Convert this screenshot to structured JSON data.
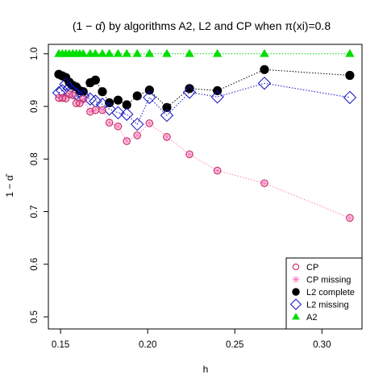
{
  "chart_data": {
    "type": "scatter",
    "title_prefix": "(1 − ",
    "title_symbol": "α̂",
    "title_suffix": ") by algorithms A2, L2 and CP when π(xi)=0.8",
    "xlabel": "h",
    "ylabel_prefix": "1 − ",
    "ylabel_symbol": "α̂",
    "xlim": [
      0.143,
      0.323
    ],
    "ylim": [
      0.477,
      1.018
    ],
    "x_ticks": [
      0.15,
      0.2,
      0.25,
      0.3
    ],
    "x_tick_labels": [
      "0.15",
      "0.20",
      "0.25",
      "0.30"
    ],
    "y_ticks": [
      0.5,
      0.6,
      0.7,
      0.8,
      0.9,
      1.0
    ],
    "y_tick_labels": [
      "0.5",
      "0.6",
      "0.7",
      "0.8",
      "0.9",
      "1.0"
    ],
    "legend_position": "bottom-right",
    "x": [
      0.149,
      0.151,
      0.153,
      0.155,
      0.157,
      0.159,
      0.161,
      0.163,
      0.167,
      0.17,
      0.174,
      0.178,
      0.183,
      0.188,
      0.194,
      0.201,
      0.211,
      0.224,
      0.24,
      0.267,
      0.316
    ],
    "series": [
      {
        "name": "CP",
        "marker": "circle-open",
        "color": "#c8396b",
        "line": "none",
        "values": [
          0.916,
          0.916,
          0.915,
          0.923,
          0.921,
          0.906,
          0.906,
          0.914,
          0.89,
          0.893,
          0.893,
          0.869,
          0.862,
          0.834,
          0.845,
          0.868,
          0.842,
          0.809,
          0.778,
          0.754,
          0.688
        ]
      },
      {
        "name": "CP missing",
        "marker": "asterisk",
        "color": "#ff80c0",
        "line": "dotted",
        "values": [
          0.916,
          0.916,
          0.915,
          0.923,
          0.921,
          0.906,
          0.906,
          0.914,
          0.89,
          0.893,
          0.893,
          0.869,
          0.862,
          0.834,
          0.845,
          0.868,
          0.842,
          0.809,
          0.778,
          0.754,
          0.688
        ]
      },
      {
        "name": "L2 complete",
        "marker": "filled-circle",
        "color": "#000000",
        "line": "dotted",
        "values": [
          0.961,
          0.958,
          0.955,
          0.946,
          0.94,
          0.937,
          0.93,
          0.928,
          0.945,
          0.95,
          0.928,
          0.907,
          0.912,
          0.903,
          0.92,
          0.931,
          0.898,
          0.934,
          0.93,
          0.97,
          0.959
        ]
      },
      {
        "name": "L2 missing",
        "marker": "diamond-open",
        "color": "#1010c0",
        "line": "dotted",
        "values": [
          0.926,
          0.93,
          0.942,
          0.934,
          0.928,
          0.924,
          0.918,
          0.92,
          0.914,
          0.91,
          0.904,
          0.895,
          0.888,
          0.885,
          0.866,
          0.917,
          0.883,
          0.927,
          0.918,
          0.944,
          0.917
        ]
      },
      {
        "name": "A2",
        "marker": "filled-triangle",
        "color": "#00dd00",
        "line": "dotted",
        "values": [
          1,
          1,
          1,
          1,
          1,
          1,
          1,
          1,
          1,
          1,
          1,
          1,
          1,
          1,
          1,
          1,
          1,
          1,
          1,
          1,
          1
        ]
      }
    ]
  }
}
